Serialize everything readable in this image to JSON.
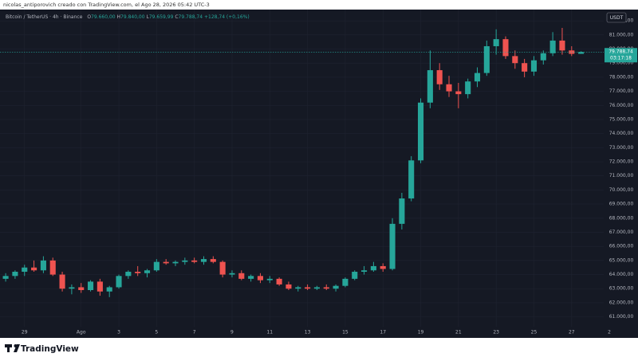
{
  "chart_data": {
    "type": "candlestick",
    "credit": "nicolas_antiporovich creado con TradingView.com, el Ago 28, 2026 05:42 UTC-3",
    "title": "Bitcoin / TetherUS · 4h · Binance",
    "ohlc": [
      {
        "key": "O",
        "value": "79.660,00"
      },
      {
        "key": "H",
        "value": "79.840,00"
      },
      {
        "key": "L",
        "value": "79.659,99"
      },
      {
        "key": "C",
        "value": "79.788,74"
      }
    ],
    "change": "+128,74 (+0,16%)",
    "currency": "USDT",
    "last_price": {
      "value": 79788.74,
      "label": "79.788,74"
    },
    "countdown": "03:17:18",
    "brand": "TradingView",
    "up_color": "#26a69a",
    "down_color": "#ef5350",
    "x": [
      -1,
      -0.5,
      0,
      0.5,
      1,
      1.5,
      2,
      2.5,
      3,
      3.5,
      4,
      4.5,
      5,
      5.5,
      6,
      6.5,
      7,
      7.5,
      8,
      8.5,
      9,
      9.5,
      10,
      10.5,
      11,
      11.5,
      12,
      12.5,
      13,
      13.5,
      14,
      14.5,
      15,
      15.5,
      16,
      16.5,
      17,
      17.5,
      18,
      18.5,
      19,
      19.5,
      20,
      20.5,
      21,
      21.5,
      22,
      22.5,
      23,
      23.5,
      24,
      24.5,
      25,
      25.5,
      26,
      26.5,
      27,
      27.5,
      28,
      28.5,
      29,
      29.5
    ],
    "open": [
      63700,
      63900,
      64200,
      64500,
      64300,
      65000,
      64000,
      63000,
      63100,
      62900,
      63500,
      62800,
      63100,
      63900,
      64200,
      64100,
      64300,
      64900,
      64800,
      64900,
      65000,
      64900,
      65100,
      64900,
      64000,
      64100,
      63700,
      63900,
      63600,
      63700,
      63300,
      63000,
      63100,
      63000,
      63100,
      63000,
      63200,
      63700,
      64200,
      64300,
      64600,
      64400,
      67600,
      69400,
      72100,
      76200,
      78500,
      77500,
      77000,
      76800,
      77700,
      78300,
      80200,
      80700,
      79500,
      79000,
      78400,
      79200,
      79700,
      80600,
      79900,
      79660
    ],
    "high": [
      64100,
      64300,
      64700,
      65000,
      65300,
      65200,
      64200,
      63300,
      63400,
      63600,
      63700,
      63200,
      64000,
      64300,
      64600,
      64400,
      65100,
      65100,
      65000,
      65200,
      65200,
      65300,
      65300,
      65000,
      64300,
      64300,
      64000,
      64100,
      63900,
      63800,
      63500,
      63200,
      63300,
      63200,
      63300,
      63300,
      63800,
      64300,
      64600,
      64900,
      64800,
      68000,
      69800,
      72400,
      76500,
      79900,
      79000,
      78100,
      77600,
      77900,
      78700,
      80600,
      81400,
      80900,
      79900,
      79300,
      79500,
      79900,
      81200,
      81500,
      80200,
      79840
    ],
    "low": [
      63500,
      63700,
      63900,
      64200,
      64100,
      63900,
      62800,
      62600,
      62700,
      62800,
      62500,
      62400,
      63000,
      63700,
      63900,
      63800,
      64200,
      64700,
      64600,
      64700,
      64800,
      64700,
      64800,
      63800,
      63800,
      63600,
      63500,
      63400,
      63400,
      63200,
      62900,
      62800,
      62900,
      62900,
      62900,
      62800,
      63100,
      63600,
      64000,
      64200,
      64200,
      64300,
      67200,
      69200,
      71900,
      75800,
      77100,
      76600,
      75800,
      76500,
      77300,
      78100,
      79600,
      79300,
      78600,
      78000,
      78100,
      78900,
      79500,
      79600,
      79500,
      79659.99
    ],
    "close": [
      63900,
      64200,
      64500,
      64300,
      65000,
      64000,
      63000,
      63100,
      62900,
      63500,
      62800,
      63100,
      63900,
      64200,
      64100,
      64300,
      64900,
      64800,
      64900,
      65000,
      64900,
      65100,
      64900,
      64000,
      64100,
      63700,
      63900,
      63600,
      63700,
      63300,
      63000,
      63100,
      63000,
      63100,
      63000,
      63200,
      63700,
      64200,
      64300,
      64600,
      64400,
      67600,
      69400,
      72100,
      76200,
      78500,
      77500,
      77000,
      76800,
      77700,
      78300,
      80200,
      80700,
      79500,
      79000,
      78400,
      79200,
      79700,
      80600,
      79900,
      79660,
      79788.74
    ],
    "xlim": [
      -1.3,
      30.7
    ],
    "xticks": [
      {
        "value": 0,
        "label": "29"
      },
      {
        "value": 3,
        "label": "Ago"
      },
      {
        "value": 5,
        "label": "3"
      },
      {
        "value": 7,
        "label": "5"
      },
      {
        "value": 9,
        "label": "7"
      },
      {
        "value": 11,
        "label": "9"
      },
      {
        "value": 13,
        "label": "11"
      },
      {
        "value": 15,
        "label": "13"
      },
      {
        "value": 17,
        "label": "15"
      },
      {
        "value": 19,
        "label": "17"
      },
      {
        "value": 21,
        "label": "19"
      },
      {
        "value": 23,
        "label": "21"
      },
      {
        "value": 25,
        "label": "23"
      },
      {
        "value": 27,
        "label": "25"
      },
      {
        "value": 29,
        "label": "27"
      },
      {
        "value": 31,
        "label": "2"
      }
    ],
    "ylim": [
      60300,
      82800
    ],
    "yticks": [
      {
        "value": 61000,
        "label": "61.000,00"
      },
      {
        "value": 62000,
        "label": "62.000,00"
      },
      {
        "value": 63000,
        "label": "63.000,00"
      },
      {
        "value": 64000,
        "label": "64.000,00"
      },
      {
        "value": 65000,
        "label": "65.000,00"
      },
      {
        "value": 66000,
        "label": "66.000,00"
      },
      {
        "value": 67000,
        "label": "67.000,00"
      },
      {
        "value": 68000,
        "label": "68.000,00"
      },
      {
        "value": 69000,
        "label": "69.000,00"
      },
      {
        "value": 70000,
        "label": "70.000,00"
      },
      {
        "value": 71000,
        "label": "71.000,00"
      },
      {
        "value": 72000,
        "label": "72.000,00"
      },
      {
        "value": 73000,
        "label": "73.000,00"
      },
      {
        "value": 74000,
        "label": "74.000,00"
      },
      {
        "value": 75000,
        "label": "75.000,00"
      },
      {
        "value": 76000,
        "label": "76.000,00"
      },
      {
        "value": 77000,
        "label": "77.000,00"
      },
      {
        "value": 78000,
        "label": "78.000,00"
      },
      {
        "value": 79000,
        "label": "79.000,00"
      },
      {
        "value": 80000,
        "label": "80.000,00"
      },
      {
        "value": 81000,
        "label": "81.000,00"
      },
      {
        "value": 82000,
        "label": "82.000,00"
      }
    ],
    "grid": true
  }
}
